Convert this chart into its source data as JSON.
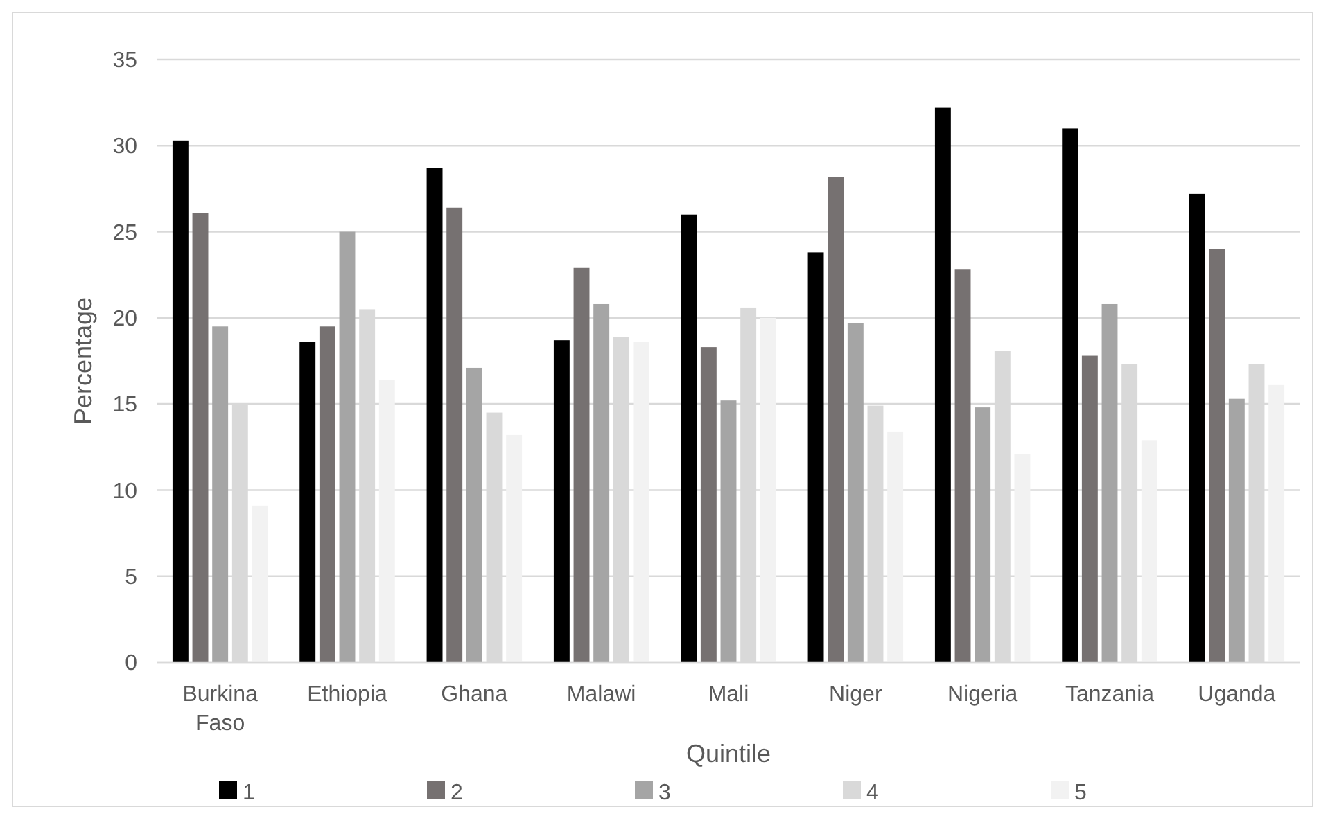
{
  "chart_data": {
    "type": "bar",
    "xlabel": "Quintile",
    "ylabel": "Percentage",
    "categories": [
      "Burkina Faso",
      "Ethiopia",
      "Ghana",
      "Malawi",
      "Mali",
      "Niger",
      "Nigeria",
      "Tanzania",
      "Uganda"
    ],
    "series": [
      {
        "name": "1",
        "color": "#000000",
        "values": [
          30.3,
          18.6,
          28.7,
          18.7,
          26.0,
          23.8,
          32.2,
          31.0,
          27.2
        ]
      },
      {
        "name": "2",
        "color": "#767171",
        "values": [
          26.1,
          19.5,
          26.4,
          22.9,
          18.3,
          28.2,
          22.8,
          17.8,
          24.0
        ]
      },
      {
        "name": "3",
        "color": "#a5a5a5",
        "values": [
          19.5,
          25.0,
          17.1,
          20.8,
          15.2,
          19.7,
          14.8,
          20.8,
          15.3
        ]
      },
      {
        "name": "4",
        "color": "#d9d9d9",
        "values": [
          15.0,
          20.5,
          14.5,
          18.9,
          20.6,
          14.9,
          18.1,
          17.3,
          17.3
        ]
      },
      {
        "name": "5",
        "color": "#f2f2f2",
        "values": [
          9.1,
          16.4,
          13.2,
          18.6,
          20.0,
          13.4,
          12.1,
          12.9,
          16.1
        ]
      }
    ],
    "ylim": [
      0,
      35
    ],
    "yticks": [
      0,
      5,
      10,
      15,
      20,
      25,
      30,
      35
    ],
    "grid": "y",
    "legend": "bottom"
  }
}
